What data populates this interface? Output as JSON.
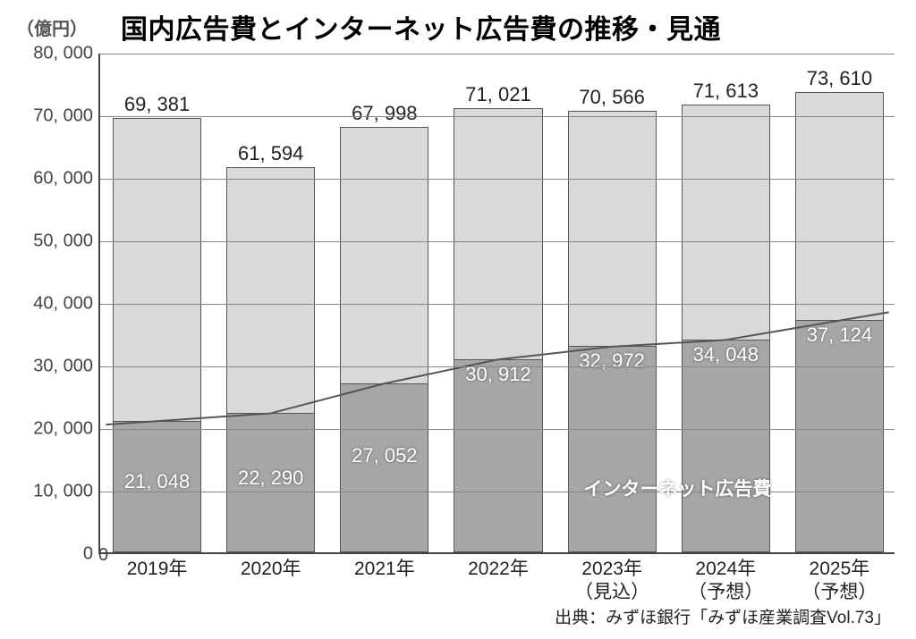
{
  "chart": {
    "type": "stacked-bar",
    "title": "国内広告費とインターネット広告費の推移・見通",
    "unit_label": "（億円）",
    "y_axis": {
      "min": 0,
      "max": 80000,
      "tick_step": 10000,
      "ticks": [
        "0",
        "10, 000",
        "20, 000",
        "30, 000",
        "40, 000",
        "50, 000",
        "60, 000",
        "70, 000",
        "80, 000"
      ],
      "label_fontsize": 20,
      "label_color": "#444444"
    },
    "x_categories": [
      {
        "line1": "2019年",
        "line2": ""
      },
      {
        "line1": "2020年",
        "line2": ""
      },
      {
        "line1": "2021年",
        "line2": ""
      },
      {
        "line1": "2022年",
        "line2": ""
      },
      {
        "line1": "2023年",
        "line2": "（見込）"
      },
      {
        "line1": "2024年",
        "line2": "（予想）"
      },
      {
        "line1": "2025年",
        "line2": "（予想）"
      }
    ],
    "totals": [
      69381,
      61594,
      67998,
      71021,
      70566,
      71613,
      73610
    ],
    "total_labels": [
      "69, 381",
      "61, 594",
      "67, 998",
      "71, 021",
      "70, 566",
      "71, 613",
      "73, 610"
    ],
    "internet": [
      21048,
      22290,
      27052,
      30912,
      32972,
      34048,
      37124
    ],
    "internet_labels": [
      "21, 048",
      "22, 290",
      "27, 052",
      "30, 912",
      "32, 972",
      "34, 048",
      "37, 124"
    ],
    "series_name": "インターネット広告費",
    "colors": {
      "bar_top_fill": "#d9d9d9",
      "bar_bottom_fill": "#a7a7a7",
      "bar_border": "#555555",
      "grid": "#888888",
      "background": "#ffffff",
      "trend_line": "#555555"
    },
    "bar_width_ratio": 0.78,
    "title_fontsize": 30,
    "source": "出典：みずほ銀行「みずほ産業調査Vol.73」",
    "zero_marker": "0"
  }
}
